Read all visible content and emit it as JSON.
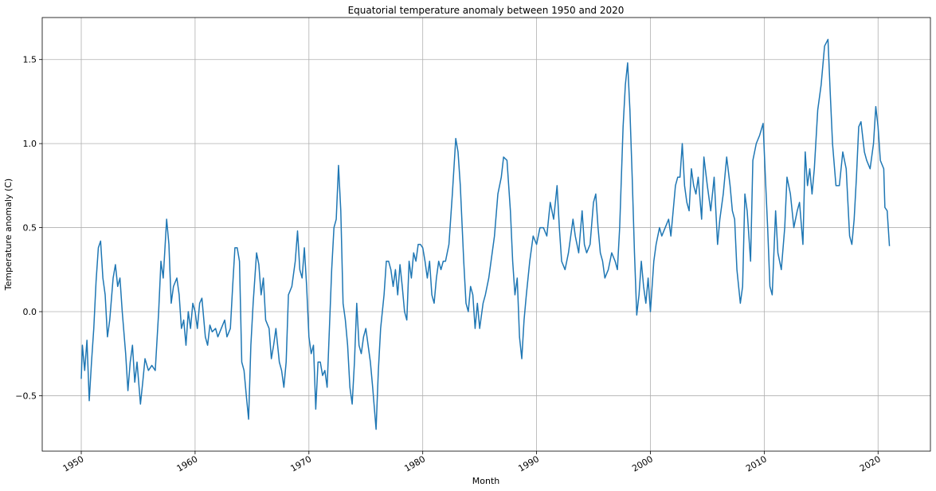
{
  "chart_data": {
    "type": "line",
    "title": "Equatorial temperature anomaly between 1950 and 2020",
    "xlabel": "Month",
    "ylabel": "Temperature anomaly (C)",
    "color": "#1f77b4",
    "grid": true,
    "xlim": [
      1946.57,
      2024.6
    ],
    "ylim": [
      -0.83,
      1.75
    ],
    "xticks": [
      1950,
      1960,
      1970,
      1980,
      1990,
      2000,
      2010,
      2020
    ],
    "yticks": [
      {
        "value": -0.5,
        "label": "−0.5"
      },
      {
        "value": 0,
        "label": "0.0"
      },
      0.5,
      {
        "value": 1,
        "label": "1.0"
      },
      1.5
    ],
    "x": [
      1950.0,
      1950.1,
      1950.3,
      1950.5,
      1950.7,
      1950.9,
      1951.1,
      1951.3,
      1951.5,
      1951.7,
      1951.9,
      1952.1,
      1952.3,
      1952.5,
      1952.8,
      1953.0,
      1953.2,
      1953.4,
      1953.6,
      1953.9,
      1954.1,
      1954.3,
      1954.5,
      1954.7,
      1954.9,
      1955.2,
      1955.4,
      1955.6,
      1955.9,
      1956.2,
      1956.5,
      1956.8,
      1957.0,
      1957.2,
      1957.5,
      1957.7,
      1957.9,
      1958.1,
      1958.4,
      1958.6,
      1958.8,
      1959.0,
      1959.2,
      1959.4,
      1959.6,
      1959.8,
      1960.0,
      1960.2,
      1960.4,
      1960.6,
      1960.9,
      1961.1,
      1961.3,
      1961.5,
      1961.8,
      1962.0,
      1962.3,
      1962.6,
      1962.8,
      1963.1,
      1963.3,
      1963.5,
      1963.7,
      1963.9,
      1964.1,
      1964.3,
      1964.5,
      1964.7,
      1964.9,
      1965.1,
      1965.4,
      1965.6,
      1965.8,
      1966.0,
      1966.2,
      1966.5,
      1966.7,
      1966.9,
      1967.1,
      1967.4,
      1967.6,
      1967.8,
      1968.0,
      1968.2,
      1968.5,
      1968.8,
      1969.0,
      1969.2,
      1969.4,
      1969.6,
      1969.8,
      1970.0,
      1970.2,
      1970.4,
      1970.6,
      1970.8,
      1971.0,
      1971.2,
      1971.4,
      1971.6,
      1971.8,
      1972.0,
      1972.2,
      1972.4,
      1972.6,
      1972.8,
      1973.0,
      1973.2,
      1973.4,
      1973.6,
      1973.8,
      1974.0,
      1974.2,
      1974.4,
      1974.6,
      1974.8,
      1975.0,
      1975.2,
      1975.4,
      1975.6,
      1975.9,
      1976.1,
      1976.3,
      1976.6,
      1976.8,
      1977.0,
      1977.2,
      1977.4,
      1977.6,
      1977.8,
      1978.0,
      1978.2,
      1978.4,
      1978.6,
      1978.8,
      1979.0,
      1979.2,
      1979.4,
      1979.6,
      1979.8,
      1980.0,
      1980.2,
      1980.4,
      1980.6,
      1980.8,
      1981.0,
      1981.2,
      1981.4,
      1981.6,
      1981.8,
      1982.0,
      1982.3,
      1982.6,
      1982.9,
      1983.1,
      1983.3,
      1983.6,
      1983.8,
      1984.0,
      1984.2,
      1984.4,
      1984.6,
      1984.8,
      1985.0,
      1985.3,
      1985.5,
      1985.8,
      1986.0,
      1986.3,
      1986.6,
      1986.9,
      1987.1,
      1987.4,
      1987.7,
      1987.9,
      1988.1,
      1988.3,
      1988.5,
      1988.7,
      1988.9,
      1989.1,
      1989.4,
      1989.7,
      1990.0,
      1990.3,
      1990.6,
      1990.9,
      1991.2,
      1991.5,
      1991.8,
      1992.0,
      1992.2,
      1992.5,
      1992.8,
      1993.0,
      1993.2,
      1993.4,
      1993.7,
      1994.0,
      1994.2,
      1994.4,
      1994.7,
      1995.0,
      1995.2,
      1995.4,
      1995.6,
      1995.8,
      1996.0,
      1996.3,
      1996.6,
      1996.9,
      1997.1,
      1997.3,
      1997.6,
      1997.8,
      1998.0,
      1998.2,
      1998.4,
      1998.6,
      1998.8,
      1999.0,
      1999.2,
      1999.4,
      1999.6,
      1999.8,
      2000.0,
      2000.3,
      2000.5,
      2000.8,
      2001.0,
      2001.3,
      2001.6,
      2001.8,
      2002.0,
      2002.2,
      2002.4,
      2002.6,
      2002.8,
      2003.0,
      2003.2,
      2003.4,
      2003.6,
      2003.8,
      2004.0,
      2004.2,
      2004.5,
      2004.7,
      2005.0,
      2005.3,
      2005.6,
      2005.9,
      2006.1,
      2006.4,
      2006.7,
      2007.0,
      2007.2,
      2007.4,
      2007.6,
      2007.9,
      2008.1,
      2008.3,
      2008.5,
      2008.8,
      2009.0,
      2009.3,
      2009.6,
      2009.9,
      2010.1,
      2010.3,
      2010.5,
      2010.7,
      2011.0,
      2011.2,
      2011.5,
      2011.8,
      2012.0,
      2012.3,
      2012.6,
      2012.9,
      2013.1,
      2013.4,
      2013.6,
      2013.8,
      2014.0,
      2014.2,
      2014.4,
      2014.7,
      2015.0,
      2015.3,
      2015.6,
      2015.8,
      2016.0,
      2016.3,
      2016.6,
      2016.9,
      2017.2,
      2017.5,
      2017.7,
      2017.9,
      2018.1,
      2018.3,
      2018.5,
      2018.8,
      2019.0,
      2019.3,
      2019.6,
      2019.8,
      2020.0,
      2020.2,
      2020.5,
      2020.6,
      2020.8,
      2021.0
    ],
    "values": [
      -0.4,
      -0.2,
      -0.35,
      -0.17,
      -0.53,
      -0.3,
      -0.1,
      0.18,
      0.38,
      0.42,
      0.2,
      0.1,
      -0.15,
      -0.05,
      0.2,
      0.28,
      0.15,
      0.2,
      0.0,
      -0.25,
      -0.47,
      -0.3,
      -0.2,
      -0.42,
      -0.3,
      -0.55,
      -0.42,
      -0.28,
      -0.35,
      -0.32,
      -0.35,
      0.0,
      0.3,
      0.2,
      0.55,
      0.4,
      0.05,
      0.15,
      0.2,
      0.1,
      -0.1,
      -0.05,
      -0.2,
      0.0,
      -0.1,
      0.05,
      0.0,
      -0.1,
      0.05,
      0.08,
      -0.15,
      -0.2,
      -0.08,
      -0.12,
      -0.1,
      -0.15,
      -0.1,
      -0.05,
      -0.15,
      -0.1,
      0.15,
      0.38,
      0.38,
      0.3,
      -0.3,
      -0.35,
      -0.5,
      -0.64,
      -0.2,
      0.05,
      0.35,
      0.28,
      0.1,
      0.2,
      -0.05,
      -0.1,
      -0.28,
      -0.2,
      -0.1,
      -0.3,
      -0.35,
      -0.45,
      -0.3,
      0.1,
      0.15,
      0.3,
      0.48,
      0.25,
      0.2,
      0.38,
      0.15,
      -0.15,
      -0.25,
      -0.2,
      -0.58,
      -0.3,
      -0.3,
      -0.38,
      -0.35,
      -0.45,
      -0.1,
      0.25,
      0.5,
      0.55,
      0.87,
      0.6,
      0.05,
      -0.05,
      -0.2,
      -0.45,
      -0.55,
      -0.3,
      0.05,
      -0.2,
      -0.25,
      -0.15,
      -0.1,
      -0.2,
      -0.3,
      -0.45,
      -0.7,
      -0.35,
      -0.1,
      0.1,
      0.3,
      0.3,
      0.25,
      0.15,
      0.25,
      0.1,
      0.28,
      0.15,
      0.0,
      -0.05,
      0.3,
      0.2,
      0.35,
      0.3,
      0.4,
      0.4,
      0.38,
      0.3,
      0.2,
      0.3,
      0.1,
      0.05,
      0.2,
      0.3,
      0.25,
      0.3,
      0.3,
      0.4,
      0.7,
      1.03,
      0.95,
      0.75,
      0.3,
      0.05,
      0.0,
      0.15,
      0.1,
      -0.1,
      0.05,
      -0.1,
      0.05,
      0.1,
      0.2,
      0.3,
      0.45,
      0.7,
      0.8,
      0.92,
      0.9,
      0.6,
      0.3,
      0.1,
      0.2,
      -0.15,
      -0.28,
      -0.05,
      0.1,
      0.3,
      0.45,
      0.4,
      0.5,
      0.5,
      0.45,
      0.65,
      0.55,
      0.75,
      0.5,
      0.3,
      0.25,
      0.35,
      0.45,
      0.55,
      0.45,
      0.35,
      0.6,
      0.4,
      0.35,
      0.4,
      0.65,
      0.7,
      0.5,
      0.35,
      0.3,
      0.2,
      0.25,
      0.35,
      0.3,
      0.25,
      0.5,
      1.1,
      1.35,
      1.48,
      1.2,
      0.8,
      0.35,
      -0.02,
      0.1,
      0.3,
      0.15,
      0.05,
      0.2,
      0.0,
      0.3,
      0.4,
      0.5,
      0.45,
      0.5,
      0.55,
      0.45,
      0.6,
      0.75,
      0.8,
      0.8,
      1.0,
      0.75,
      0.65,
      0.6,
      0.85,
      0.75,
      0.7,
      0.8,
      0.55,
      0.92,
      0.75,
      0.6,
      0.8,
      0.4,
      0.55,
      0.7,
      0.92,
      0.75,
      0.6,
      0.55,
      0.25,
      0.05,
      0.15,
      0.7,
      0.6,
      0.3,
      0.9,
      1.0,
      1.05,
      1.12,
      0.8,
      0.5,
      0.15,
      0.1,
      0.6,
      0.35,
      0.25,
      0.5,
      0.8,
      0.7,
      0.5,
      0.6,
      0.65,
      0.4,
      0.95,
      0.75,
      0.85,
      0.7,
      0.85,
      1.2,
      1.35,
      1.58,
      1.62,
      1.3,
      1.0,
      0.75,
      0.75,
      0.95,
      0.85,
      0.45,
      0.4,
      0.55,
      0.8,
      1.1,
      1.13,
      0.95,
      0.9,
      0.85,
      1.0,
      1.22,
      1.1,
      0.9,
      0.85,
      0.62,
      0.6,
      0.39
    ]
  }
}
